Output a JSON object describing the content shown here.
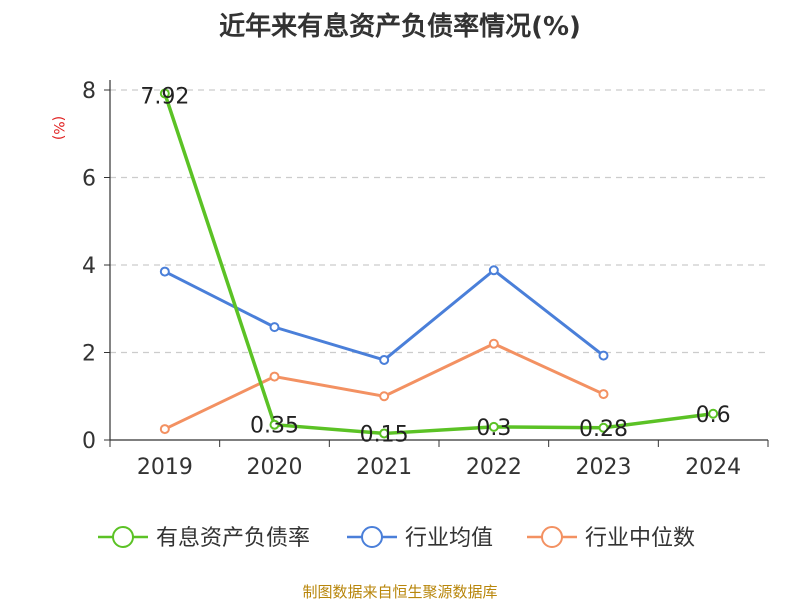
{
  "chart_data": {
    "type": "line",
    "title": "近年来有息资产负债率情况(%)",
    "ylabel": "(%)",
    "categories": [
      "2019",
      "2020",
      "2021",
      "2022",
      "2023",
      "2024"
    ],
    "ylim": [
      0,
      8
    ],
    "yticks": [
      0,
      2,
      4,
      6,
      8
    ],
    "grid": true,
    "legend_position": "bottom",
    "series": [
      {
        "name": "有息资产负债率",
        "color": "#5bc225",
        "values": [
          7.92,
          0.35,
          0.15,
          0.3,
          0.28,
          0.6
        ],
        "labels": [
          "7.92",
          "0.35",
          "0.15",
          "0.3",
          "0.28",
          "0.6"
        ]
      },
      {
        "name": "行业均值",
        "color": "#4a7fd9",
        "values": [
          3.85,
          2.58,
          1.83,
          3.88,
          1.93,
          null
        ]
      },
      {
        "name": "行业中位数",
        "color": "#f39162",
        "values": [
          0.25,
          1.45,
          1.0,
          2.2,
          1.05,
          null
        ]
      }
    ],
    "source": "制图数据来自恒生聚源数据库"
  }
}
